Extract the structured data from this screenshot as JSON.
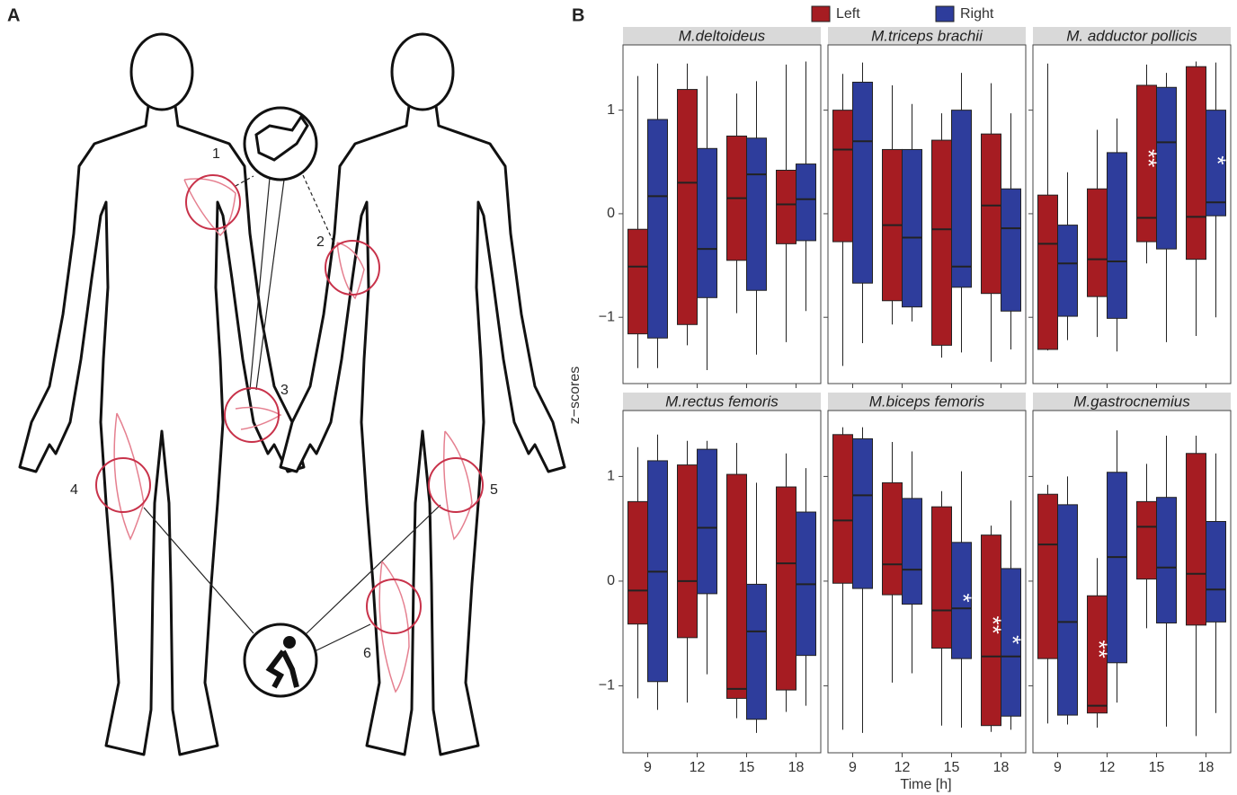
{
  "panels": {
    "a": "A",
    "b": "B"
  },
  "diagram": {
    "labels": [
      "1",
      "2",
      "3",
      "4",
      "5",
      "6"
    ]
  },
  "legend": [
    {
      "name": "Left",
      "color": "#a61c22"
    },
    {
      "name": "Right",
      "color": "#2e3d9c"
    }
  ],
  "axes": {
    "ylabel": "z−scores",
    "xlabel": "Time [h]",
    "categories": [
      "9",
      "12",
      "15",
      "18"
    ],
    "ylim": [
      -1.64,
      1.63
    ],
    "yticks": [
      {
        "value": -1,
        "label": "−1"
      },
      0,
      1
    ]
  },
  "chart_data": [
    {
      "type": "box",
      "title": "M.deltoideus",
      "series": [
        {
          "whislo": [
            -1.49,
            -1.27,
            -0.96,
            -1.24
          ],
          "q1": [
            -1.16,
            -1.07,
            -0.45,
            -0.29
          ],
          "med": [
            -0.51,
            0.3,
            0.15,
            0.09
          ],
          "q3": [
            -0.15,
            1.2,
            0.75,
            0.42
          ],
          "whishi": [
            1.33,
            1.45,
            1.16,
            1.44
          ]
        },
        {
          "whislo": [
            -1.49,
            -1.51,
            -1.36,
            -0.94
          ],
          "q1": [
            -1.2,
            -0.81,
            -0.74,
            -0.26
          ],
          "med": [
            0.17,
            -0.34,
            0.38,
            0.14
          ],
          "q3": [
            0.91,
            0.63,
            0.73,
            0.48
          ],
          "whishi": [
            1.45,
            1.33,
            1.28,
            1.47
          ]
        }
      ],
      "annotations": []
    },
    {
      "type": "box",
      "title": "M.triceps brachii",
      "series": [
        {
          "whislo": [
            -1.47,
            -1.07,
            -1.39,
            -1.43
          ],
          "q1": [
            -0.27,
            -0.84,
            -1.27,
            -0.77
          ],
          "med": [
            0.62,
            -0.11,
            -0.15,
            0.08
          ],
          "q3": [
            1.0,
            0.62,
            0.71,
            0.77
          ],
          "whishi": [
            1.35,
            1.24,
            0.97,
            1.26
          ]
        },
        {
          "whislo": [
            -1.25,
            -1.04,
            -1.34,
            -1.31
          ],
          "q1": [
            -0.67,
            -0.9,
            -0.71,
            -0.94
          ],
          "med": [
            0.7,
            -0.23,
            -0.51,
            -0.14
          ],
          "q3": [
            1.27,
            0.62,
            1.0,
            0.24
          ],
          "whishi": [
            1.46,
            1.06,
            1.36,
            0.97
          ]
        }
      ],
      "annotations": []
    },
    {
      "type": "box",
      "title": "M. adductor pollicis",
      "series": [
        {
          "whislo": [
            -1.32,
            -1.19,
            -0.48,
            -1.18
          ],
          "q1": [
            -1.31,
            -0.8,
            -0.27,
            -0.44
          ],
          "med": [
            -0.29,
            -0.44,
            -0.04,
            -0.03
          ],
          "q3": [
            0.18,
            0.24,
            1.24,
            1.42
          ],
          "whishi": [
            1.45,
            0.81,
            1.44,
            1.47
          ]
        },
        {
          "whislo": [
            -1.22,
            -1.33,
            -1.24,
            -1.0
          ],
          "q1": [
            -0.99,
            -1.01,
            -0.34,
            -0.02
          ],
          "med": [
            -0.48,
            -0.46,
            0.69,
            0.11
          ],
          "q3": [
            -0.11,
            0.59,
            1.22,
            1.0
          ],
          "whishi": [
            0.4,
            0.92,
            1.36,
            1.46
          ]
        }
      ],
      "annotations": [
        {
          "series": 0,
          "index": 2,
          "text": "**"
        },
        {
          "series": 1,
          "index": 3,
          "text": "*"
        }
      ]
    },
    {
      "type": "box",
      "title": "M.rectus femoris",
      "series": [
        {
          "whislo": [
            -1.12,
            -1.16,
            -1.31,
            -1.25
          ],
          "q1": [
            -0.41,
            -0.54,
            -1.12,
            -1.04
          ],
          "med": [
            -0.09,
            0.0,
            -1.03,
            0.17
          ],
          "q3": [
            0.76,
            1.11,
            1.02,
            0.9
          ],
          "whishi": [
            1.28,
            1.34,
            1.32,
            1.22
          ]
        },
        {
          "whislo": [
            -1.23,
            -0.89,
            -1.45,
            -1.19
          ],
          "q1": [
            -0.96,
            -0.12,
            -1.32,
            -0.71
          ],
          "med": [
            0.09,
            0.51,
            -0.48,
            -0.03
          ],
          "q3": [
            1.15,
            1.26,
            -0.03,
            0.66
          ],
          "whishi": [
            1.4,
            1.34,
            0.94,
            1.08
          ]
        }
      ],
      "annotations": []
    },
    {
      "type": "box",
      "title": "M.biceps femoris",
      "series": [
        {
          "whislo": [
            -1.42,
            -0.97,
            -1.38,
            -1.44
          ],
          "q1": [
            -0.02,
            -0.13,
            -0.64,
            -1.38
          ],
          "med": [
            0.58,
            0.16,
            -0.28,
            -0.72
          ],
          "q3": [
            1.4,
            0.94,
            0.71,
            0.44
          ],
          "whishi": [
            1.47,
            1.33,
            0.86,
            0.53
          ]
        },
        {
          "whislo": [
            -1.45,
            -0.88,
            -1.4,
            -1.42
          ],
          "q1": [
            -0.07,
            -0.22,
            -0.74,
            -1.29
          ],
          "med": [
            0.82,
            0.11,
            -0.26,
            -0.72
          ],
          "q3": [
            1.36,
            0.79,
            0.37,
            0.12
          ],
          "whishi": [
            1.47,
            1.24,
            1.05,
            0.77
          ]
        }
      ],
      "annotations": [
        {
          "series": 1,
          "index": 2,
          "text": "*"
        },
        {
          "series": 0,
          "index": 3,
          "text": "**"
        },
        {
          "series": 1,
          "index": 3,
          "text": "*"
        }
      ]
    },
    {
      "type": "box",
      "title": "M.gastrocnemius",
      "series": [
        {
          "whislo": [
            -1.36,
            -1.4,
            -0.45,
            -1.48
          ],
          "q1": [
            -0.74,
            -1.26,
            0.02,
            -0.42
          ],
          "med": [
            0.35,
            -1.19,
            0.52,
            0.07
          ],
          "q3": [
            0.83,
            -0.14,
            0.76,
            1.22
          ],
          "whishi": [
            0.92,
            0.22,
            1.12,
            1.39
          ]
        },
        {
          "whislo": [
            -1.37,
            -1.16,
            -1.39,
            -1.26
          ],
          "q1": [
            -1.28,
            -0.78,
            -0.4,
            -0.39
          ],
          "med": [
            -0.39,
            0.23,
            0.13,
            -0.08
          ],
          "q3": [
            0.73,
            1.04,
            0.8,
            0.57
          ],
          "whishi": [
            1.0,
            1.44,
            1.39,
            1.22
          ]
        }
      ],
      "annotations": [
        {
          "series": 0,
          "index": 1,
          "text": "**"
        }
      ]
    }
  ]
}
